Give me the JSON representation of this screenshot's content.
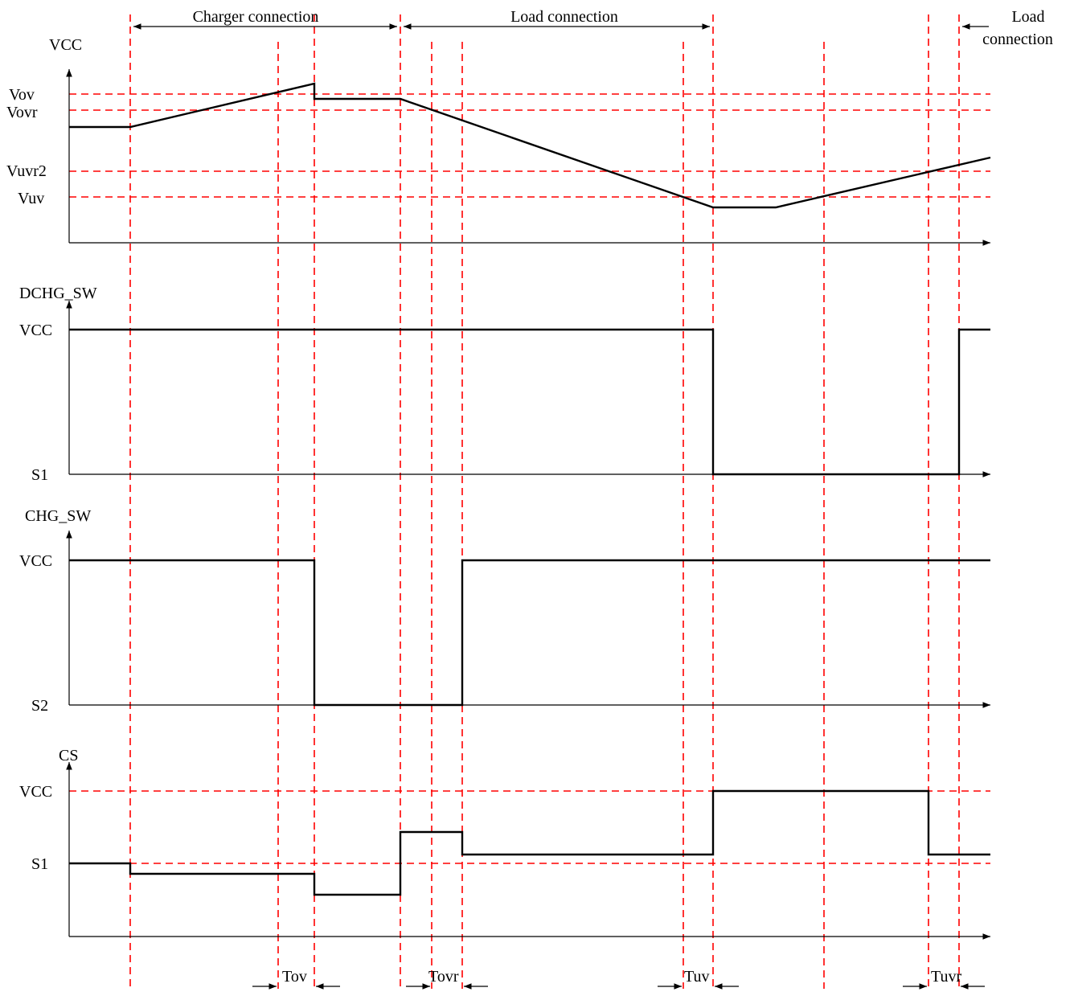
{
  "colors": {
    "guide": "#ff0000",
    "signal": "#000000",
    "axis": "#000000"
  },
  "phases": {
    "charger": "Charger connection",
    "load": "Load connection",
    "load2_line1": "Load",
    "load2_line2": "connection"
  },
  "vcc_panel": {
    "title": "VCC",
    "levels": {
      "vov": "Vov",
      "vovr": "Vovr",
      "vuvr2": "Vuvr2",
      "vuv": "Vuv"
    }
  },
  "dchg_panel": {
    "title": "DCHG_SW",
    "high": "VCC",
    "low": "S1"
  },
  "chg_panel": {
    "title": "CHG_SW",
    "high": "VCC",
    "low": "S2"
  },
  "cs_panel": {
    "title": "CS",
    "high": "VCC",
    "low": "S1"
  },
  "delays": {
    "tov": "Tov",
    "tovr": "Tovr",
    "tuv": "Tuv",
    "tuvr": "Tuvr"
  }
}
